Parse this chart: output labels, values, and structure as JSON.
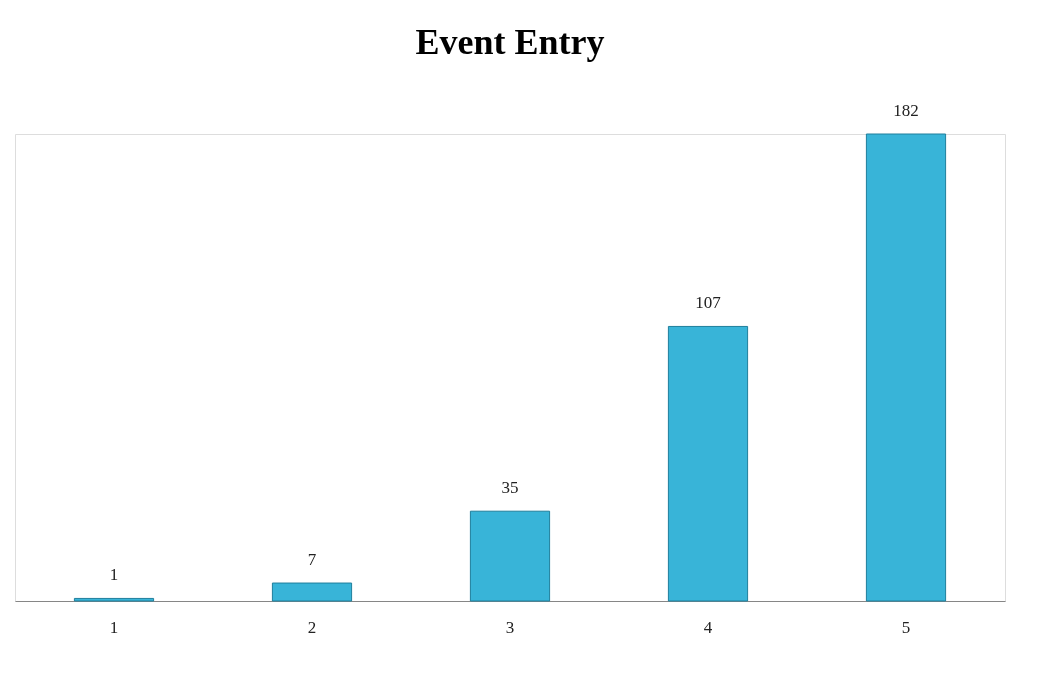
{
  "chart_data": {
    "type": "bar",
    "title": "Event Entry",
    "categories": [
      "1",
      "2",
      "3",
      "4",
      "5"
    ],
    "values": [
      1,
      7,
      35,
      107,
      182
    ],
    "color": "#38b4d8",
    "data_labels": true,
    "tick_labels": "x",
    "grid": false
  }
}
